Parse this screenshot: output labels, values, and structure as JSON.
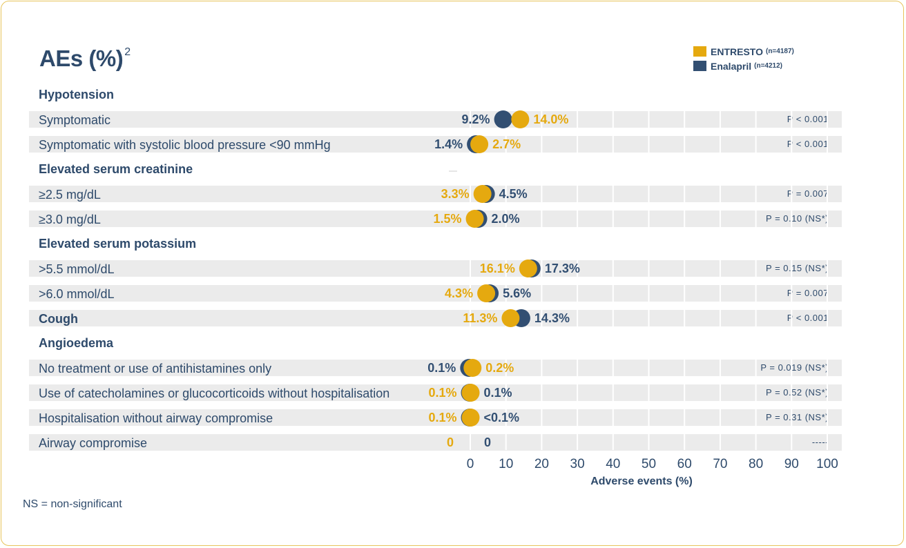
{
  "title": "AEs (%)",
  "title_sup": "2",
  "colors": {
    "entresto": "#e5a90f",
    "enalapril": "#324f72",
    "text": "#2e4a6b",
    "row_bg": "#ebebeb"
  },
  "legend": [
    {
      "name": "ENTRESTO",
      "n": "(n=4187)",
      "color": "#e5a90f"
    },
    {
      "name": "Enalapril",
      "n": "(n=4212)",
      "color": "#324f72"
    }
  ],
  "footnote": "NS = non-significant",
  "chart_data": {
    "type": "dot",
    "xlabel": "Adverse events (%)",
    "xlim": [
      0,
      100
    ],
    "xticks": [
      "0",
      "10",
      "20",
      "30",
      "40",
      "50",
      "60",
      "70",
      "80",
      "90",
      "100"
    ],
    "groups": [
      {
        "heading": "Hypotension",
        "rows": [
          {
            "label": "Symptomatic",
            "entresto": 14.0,
            "entresto_label": "14.0%",
            "enalapril": 9.2,
            "enalapril_label": "9.2%",
            "p": "P < 0.001"
          },
          {
            "label": "Symptomatic with systolic blood pressure <90 mmHg",
            "entresto": 2.7,
            "entresto_label": "2.7%",
            "enalapril": 1.4,
            "enalapril_label": "1.4%",
            "p": "P < 0.001"
          }
        ]
      },
      {
        "heading": "Elevated serum creatinine",
        "rows": [
          {
            "label": "≥2.5 mg/dL",
            "entresto": 3.3,
            "entresto_label": "3.3%",
            "enalapril": 4.5,
            "enalapril_label": "4.5%",
            "p": "P = 0.007"
          },
          {
            "label": "≥3.0 mg/dL",
            "entresto": 1.5,
            "entresto_label": "1.5%",
            "enalapril": 2.0,
            "enalapril_label": "2.0%",
            "p": "P = 0.10 (NS*)"
          }
        ]
      },
      {
        "heading": "Elevated serum potassium",
        "rows": [
          {
            "label": ">5.5 mmol/dL",
            "entresto": 16.1,
            "entresto_label": "16.1%",
            "enalapril": 17.3,
            "enalapril_label": "17.3%",
            "p": "P = 0.15 (NS*)"
          },
          {
            "label": ">6.0 mmol/dL",
            "entresto": 4.3,
            "entresto_label": "4.3%",
            "enalapril": 5.6,
            "enalapril_label": "5.6%",
            "p": "P = 0.007"
          }
        ]
      },
      {
        "heading": "",
        "rows": [
          {
            "label": "Cough",
            "bold": true,
            "entresto": 11.3,
            "entresto_label": "11.3%",
            "enalapril": 14.3,
            "enalapril_label": "14.3%",
            "p": "P < 0.001"
          }
        ]
      },
      {
        "heading": "Angioedema",
        "rows": [
          {
            "label": "No treatment or use of antihistamines only",
            "entresto": 0.2,
            "entresto_label": "0.2%",
            "enalapril": 0.1,
            "enalapril_label": "0.1%",
            "p": "P = 0.019 (NS*)"
          },
          {
            "label": "Use of catecholamines or glucocorticoids without hospitalisation",
            "entresto": 0.1,
            "entresto_label": "0.1%",
            "enalapril": 0.1,
            "enalapril_label": "0.1%",
            "p": "P = 0.52 (NS*)"
          },
          {
            "label": "Hospitalisation without airway compromise",
            "entresto": 0.1,
            "entresto_label": "0.1%",
            "enalapril": 0.1,
            "enalapril_label": "<0.1%",
            "p": "P = 0.31 (NS*)"
          },
          {
            "label": "Airway compromise",
            "entresto": 0,
            "entresto_label": "0",
            "enalapril": 0,
            "enalapril_label": "0",
            "p": "-----",
            "no_dots": true
          }
        ]
      }
    ]
  }
}
